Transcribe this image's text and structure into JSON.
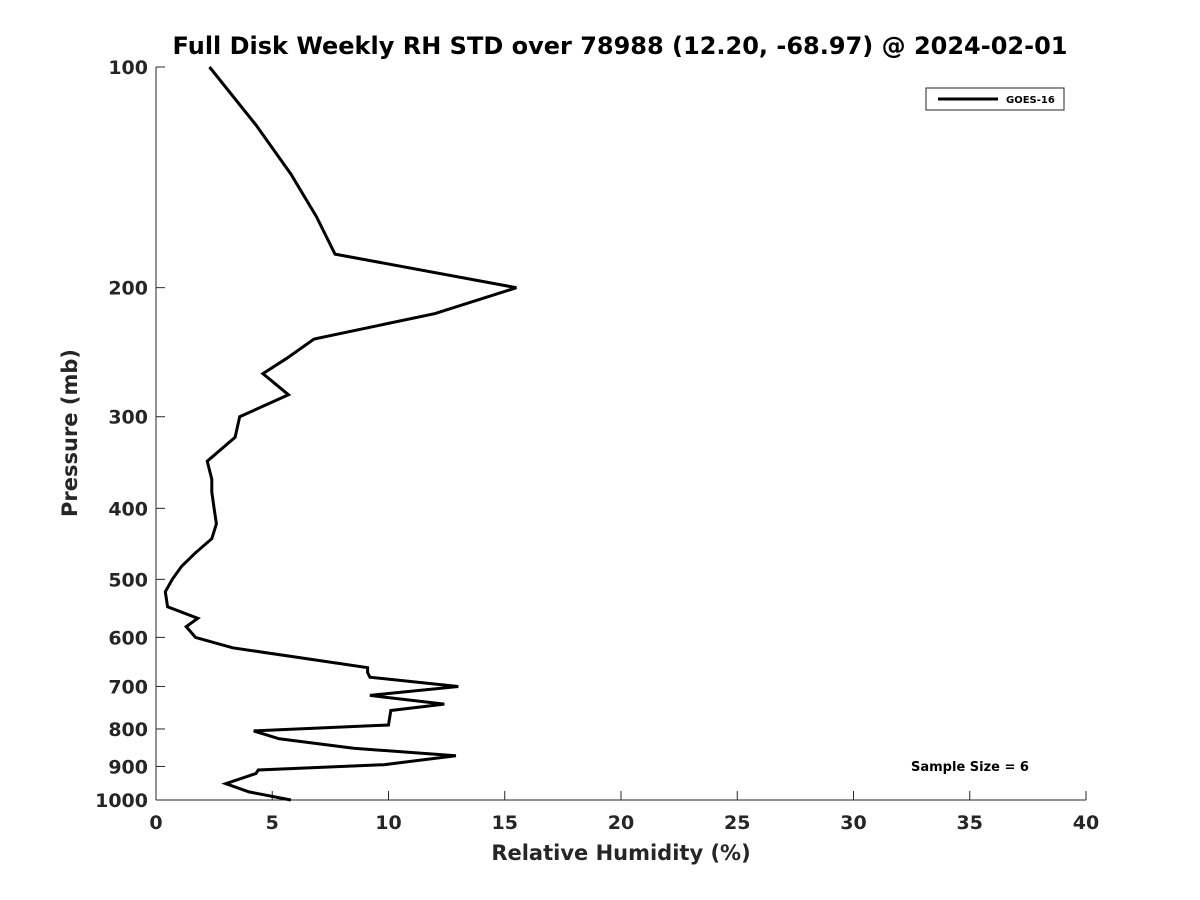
{
  "chart_data": {
    "type": "line",
    "title": "Full Disk Weekly RH STD over 78988 (12.20, -68.97) @ 2024-02-01",
    "xlabel": "Relative Humidity (%)",
    "ylabel": "Pressure (mb)",
    "xlim": [
      0,
      40
    ],
    "ylim": [
      100,
      1000
    ],
    "y_scale": "log",
    "y_reversed": true,
    "x_ticks": [
      "0",
      "5",
      "10",
      "15",
      "20",
      "25",
      "30",
      "35",
      "40"
    ],
    "y_ticks": [
      "100",
      "200",
      "300",
      "400",
      "500",
      "600",
      "700",
      "800",
      "900",
      "1000"
    ],
    "grid": false,
    "legend_position": "top-right",
    "series": [
      {
        "name": "GOES-16",
        "color": "#000000",
        "x": [
          2.3,
          4.3,
          5.8,
          6.9,
          7.7,
          15.5,
          12.0,
          6.8,
          5.6,
          4.6,
          5.7,
          3.6,
          3.4,
          2.2,
          2.4,
          2.4,
          2.5,
          2.6,
          2.4,
          1.7,
          1.1,
          0.7,
          0.4,
          0.5,
          1.8,
          1.3,
          1.7,
          3.3,
          9.1,
          9.1,
          9.2,
          13.0,
          9.2,
          12.4,
          10.1,
          10.0,
          4.2,
          5.3,
          8.5,
          12.9,
          9.8,
          4.4,
          4.3,
          3.0,
          4.0,
          5.8
        ],
        "y": [
          100,
          120,
          140,
          160,
          180,
          200,
          217,
          235,
          250,
          262,
          280,
          300,
          320,
          345,
          365,
          380,
          400,
          420,
          440,
          460,
          480,
          500,
          520,
          545,
          565,
          580,
          600,
          620,
          660,
          670,
          680,
          700,
          720,
          740,
          755,
          790,
          805,
          825,
          850,
          870,
          895,
          910,
          920,
          950,
          975,
          1000
        ]
      }
    ],
    "annotations": [
      "Sample Size = 6"
    ]
  }
}
